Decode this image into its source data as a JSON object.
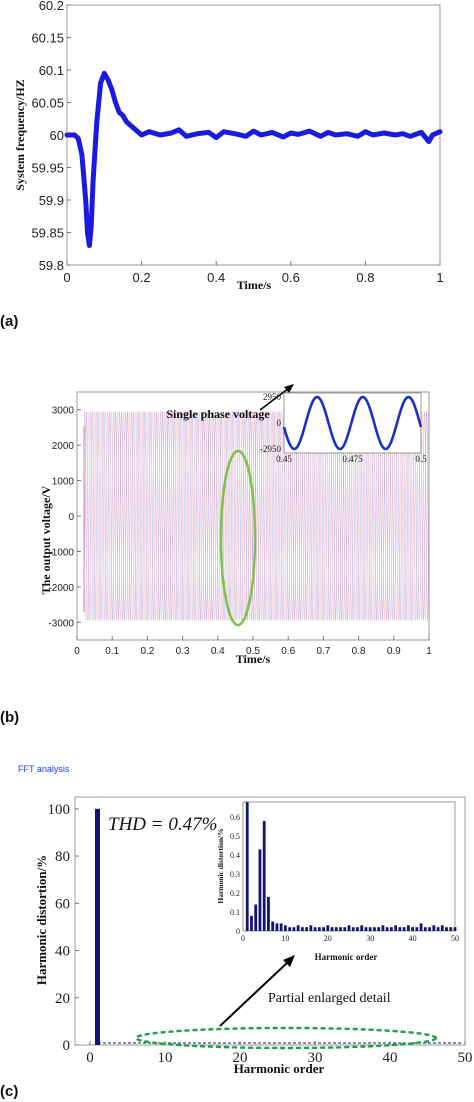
{
  "panels": {
    "a": "(a)",
    "b": "(b)",
    "c": "(c)"
  },
  "chart_data": [
    {
      "type": "line",
      "xlabel": "Time/s",
      "ylabel": "System frequency/HZ",
      "xlim": [
        0,
        1
      ],
      "ylim": [
        59.8,
        60.2
      ],
      "xticks": [
        "0",
        "0.2",
        "0.4",
        "0.6",
        "0.8",
        "1"
      ],
      "yticks": [
        "59.8",
        "59.85",
        "59.9",
        "59.95",
        "60",
        "60.05",
        "60.1",
        "60.15",
        "60.2"
      ],
      "color": "#1a1ae0",
      "series": [
        {
          "x": [
            0,
            0.02,
            0.03,
            0.04,
            0.05,
            0.055,
            0.06,
            0.065,
            0.07,
            0.08,
            0.09,
            0.1,
            0.11,
            0.12,
            0.13,
            0.14,
            0.15,
            0.16,
            0.18,
            0.2,
            0.22,
            0.25,
            0.28,
            0.3,
            0.32,
            0.35,
            0.38,
            0.4,
            0.42,
            0.45,
            0.48,
            0.5,
            0.52,
            0.55,
            0.58,
            0.6,
            0.62,
            0.65,
            0.68,
            0.7,
            0.72,
            0.75,
            0.78,
            0.8,
            0.82,
            0.85,
            0.88,
            0.9,
            0.92,
            0.95,
            0.97,
            0.98,
            1.0
          ],
          "y": [
            60.0,
            60.0,
            59.995,
            59.97,
            59.9,
            59.85,
            59.83,
            59.86,
            59.93,
            60.02,
            60.08,
            60.095,
            60.085,
            60.07,
            60.05,
            60.035,
            60.03,
            60.02,
            60.01,
            60.0,
            60.005,
            60.0,
            60.003,
            60.008,
            59.998,
            60.002,
            60.004,
            59.996,
            60.005,
            60.002,
            59.998,
            60.006,
            60.0,
            60.004,
            59.997,
            60.003,
            60.001,
            60.006,
            59.998,
            60.004,
            60.0,
            60.002,
            59.998,
            60.005,
            60.0,
            60.003,
            60.0,
            60.002,
            59.998,
            60.004,
            59.99,
            60.0,
            60.005
          ]
        }
      ]
    },
    {
      "type": "line",
      "xlabel": "Time/s",
      "ylabel": "The output voltage/V",
      "xlim": [
        0,
        1
      ],
      "ylim": [
        -3500,
        3500
      ],
      "xticks": [
        "0",
        "0.1",
        "0.2",
        "0.3",
        "0.4",
        "0.5",
        "0.6",
        "0.7",
        "0.8",
        "0.9",
        "1"
      ],
      "yticks": [
        "-3000",
        "-2000",
        "-1000",
        "0",
        "1000",
        "2000",
        "3000"
      ],
      "amplitude": 2950,
      "frequency_hz": 60,
      "annotation": "Single phase voltage",
      "inset": {
        "xlim": [
          0.45,
          0.5
        ],
        "xticks": [
          "0.45",
          "0.475",
          "0.5"
        ],
        "yticks": [
          "2950",
          "0",
          "-2950"
        ],
        "ylim": [
          -2950,
          2950
        ]
      }
    },
    {
      "type": "bar",
      "title": "FFT analysis",
      "xlabel": "Harmonic order",
      "ylabel": "Harmonic distortion/%",
      "xlim": [
        -2,
        50
      ],
      "ylim": [
        0,
        105
      ],
      "xticks": [
        "0",
        "10",
        "20",
        "30",
        "40",
        "50"
      ],
      "yticks": [
        "0",
        "20",
        "40",
        "60",
        "80",
        "100"
      ],
      "thd_label": "THD = 0.47%",
      "annotation": "Partial enlarged detail",
      "color": "#14146e",
      "bars": [
        {
          "x": 1,
          "y": 100
        }
      ],
      "inset": {
        "xlabel": "Harmonic order",
        "ylabel": "Harmonic distortion/%",
        "xlim": [
          0,
          50
        ],
        "ylim": [
          0,
          0.68
        ],
        "xticks": [
          "0",
          "10",
          "20",
          "30",
          "40",
          "50"
        ],
        "yticks": [
          "0",
          "0.1",
          "0.2",
          "0.3",
          "0.4",
          "0.5",
          "0.6"
        ],
        "x": [
          1,
          2,
          3,
          4,
          5,
          6,
          7,
          8,
          9,
          10,
          11,
          12,
          13,
          14,
          15,
          16,
          17,
          18,
          19,
          20,
          21,
          22,
          23,
          24,
          25,
          26,
          27,
          28,
          29,
          30,
          31,
          32,
          33,
          34,
          35,
          36,
          37,
          38,
          39,
          40,
          41,
          42,
          43,
          44,
          45,
          46,
          47,
          48,
          49,
          50
        ],
        "values": [
          0.68,
          0.08,
          0.14,
          0.43,
          0.58,
          0.18,
          0.05,
          0.04,
          0.04,
          0.03,
          0.02,
          0.02,
          0.03,
          0.02,
          0.02,
          0.03,
          0.02,
          0.02,
          0.02,
          0.03,
          0.02,
          0.02,
          0.02,
          0.02,
          0.03,
          0.02,
          0.02,
          0.03,
          0.02,
          0.02,
          0.02,
          0.02,
          0.03,
          0.02,
          0.02,
          0.03,
          0.02,
          0.02,
          0.03,
          0.02,
          0.02,
          0.04,
          0.02,
          0.02,
          0.03,
          0.02,
          0.03,
          0.02,
          0.02,
          0.02
        ]
      }
    }
  ]
}
